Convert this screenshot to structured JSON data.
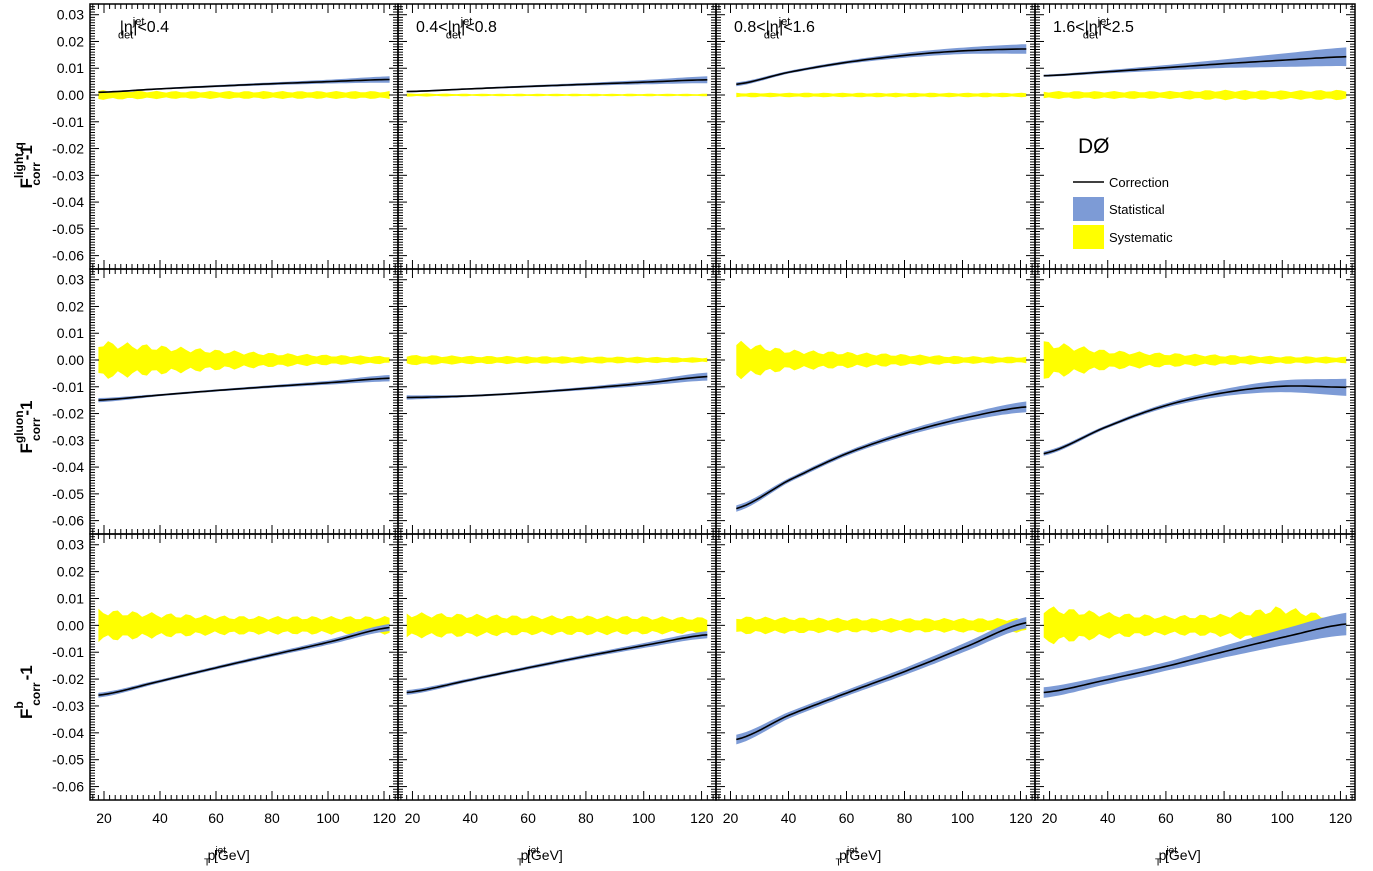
{
  "figure": {
    "experiment_label": "DØ",
    "x_axis_label": {
      "main": "p",
      "sup": "jet",
      "sub": "T",
      "units": "[GeV]"
    },
    "row_labels": [
      {
        "main": "F",
        "sup": "light q",
        "sub": "corr",
        "suffix": "-1"
      },
      {
        "main": "F",
        "sup": "gluon",
        "sub": "corr",
        "suffix": "-1"
      },
      {
        "main": "F",
        "sup": "b",
        "sub": "corr",
        "suffix": "-1"
      }
    ],
    "column_titles": [
      {
        "pre": "|η",
        "sup": "jet",
        "sub": "det",
        "post": "|<0.4"
      },
      {
        "pre": "0.4<|η",
        "sup": "jet",
        "sub": "det",
        "post": "|<0.8"
      },
      {
        "pre": "0.8<|η",
        "sup": "jet",
        "sub": "det",
        "post": "|<1.6"
      },
      {
        "pre": "1.6<|η",
        "sup": "jet",
        "sub": "det",
        "post": "|<2.5"
      }
    ],
    "legend": [
      {
        "label": "Correction",
        "kind": "line"
      },
      {
        "label": "Statistical",
        "kind": "band-stat"
      },
      {
        "label": "Systematic",
        "kind": "band-syst"
      }
    ],
    "colors": {
      "correction": "#000000",
      "statistical": "#7d9bd6",
      "systematic": "#ffff00"
    }
  },
  "chart_data": {
    "type": "line",
    "xlim": [
      15,
      125
    ],
    "ylim": [
      -0.065,
      0.034
    ],
    "x_ticks": [
      20,
      40,
      60,
      80,
      100,
      120
    ],
    "y_ticks": [
      -0.06,
      -0.05,
      -0.04,
      -0.03,
      -0.02,
      -0.01,
      0.0,
      0.01,
      0.02,
      0.03
    ],
    "y_tick_labels": [
      "-0.06",
      "-0.05",
      "-0.04",
      "-0.03",
      "-0.02",
      "-0.01",
      "0.00",
      "0.01",
      "0.02",
      "0.03"
    ],
    "x_tick_labels": [
      "20",
      "40",
      "60",
      "80",
      "100",
      "120"
    ],
    "grid": false,
    "panels": [
      {
        "row": 0,
        "col": 0,
        "x": [
          18,
          40,
          60,
          80,
          100,
          122
        ],
        "correction": [
          0.001,
          0.0023,
          0.0033,
          0.0042,
          0.005,
          0.0058
        ],
        "stat": [
          0.0003,
          0.0003,
          0.0004,
          0.0005,
          0.0007,
          0.0012
        ],
        "syst": [
          0.0015,
          0.0012,
          0.0012,
          0.0012,
          0.0012,
          0.0012
        ]
      },
      {
        "row": 0,
        "col": 1,
        "x": [
          18,
          40,
          60,
          80,
          100,
          122
        ],
        "correction": [
          0.0013,
          0.0023,
          0.0032,
          0.004,
          0.0048,
          0.0057
        ],
        "stat": [
          0.0003,
          0.0003,
          0.0004,
          0.0005,
          0.0008,
          0.0013
        ],
        "syst": [
          0.0005,
          0.0004,
          0.0004,
          0.0004,
          0.0004,
          0.0004
        ]
      },
      {
        "row": 0,
        "col": 2,
        "x": [
          22,
          40,
          60,
          80,
          100,
          122
        ],
        "correction": [
          0.004,
          0.0085,
          0.0122,
          0.0148,
          0.0165,
          0.0172
        ],
        "stat": [
          0.0007,
          0.0005,
          0.0006,
          0.0009,
          0.0012,
          0.0018
        ],
        "syst": [
          0.0007,
          0.0007,
          0.0007,
          0.0007,
          0.0007,
          0.0007
        ]
      },
      {
        "row": 0,
        "col": 3,
        "x": [
          18,
          40,
          60,
          80,
          100,
          122
        ],
        "correction": [
          0.0072,
          0.0087,
          0.0102,
          0.0117,
          0.013,
          0.0143
        ],
        "stat": [
          0.0004,
          0.0006,
          0.001,
          0.0016,
          0.0025,
          0.0035
        ],
        "syst": [
          0.0012,
          0.0012,
          0.0012,
          0.0016,
          0.0014,
          0.0016
        ]
      },
      {
        "row": 1,
        "col": 0,
        "x": [
          18,
          40,
          60,
          80,
          100,
          122
        ],
        "correction": [
          -0.015,
          -0.0131,
          -0.0114,
          -0.0099,
          -0.0085,
          -0.0068
        ],
        "stat": [
          0.0008,
          0.0004,
          0.0004,
          0.0005,
          0.0007,
          0.0012
        ],
        "syst": [
          0.006,
          0.0045,
          0.0032,
          0.0022,
          0.0016,
          0.0012
        ]
      },
      {
        "row": 1,
        "col": 1,
        "x": [
          18,
          40,
          60,
          80,
          100,
          122
        ],
        "correction": [
          -0.014,
          -0.0134,
          -0.0122,
          -0.0106,
          -0.0087,
          -0.0062
        ],
        "stat": [
          0.0008,
          0.0004,
          0.0004,
          0.0006,
          0.0009,
          0.0015
        ],
        "syst": [
          0.0016,
          0.0013,
          0.0012,
          0.0011,
          0.001,
          0.0008
        ]
      },
      {
        "row": 1,
        "col": 2,
        "x": [
          22,
          40,
          60,
          80,
          100,
          122
        ],
        "correction": [
          -0.0555,
          -0.045,
          -0.035,
          -0.0275,
          -0.0218,
          -0.0175
        ],
        "stat": [
          0.0012,
          0.0008,
          0.0008,
          0.001,
          0.0013,
          0.002
        ],
        "syst": [
          0.006,
          0.0032,
          0.0025,
          0.0018,
          0.0012,
          0.001
        ]
      },
      {
        "row": 1,
        "col": 3,
        "x": [
          18,
          40,
          60,
          80,
          100,
          122
        ],
        "correction": [
          -0.035,
          -0.0248,
          -0.017,
          -0.0122,
          -0.0098,
          -0.0102
        ],
        "stat": [
          0.0008,
          0.0006,
          0.0008,
          0.0013,
          0.0022,
          0.0032
        ],
        "syst": [
          0.006,
          0.003,
          0.0022,
          0.0016,
          0.0012,
          0.001
        ]
      },
      {
        "row": 2,
        "col": 0,
        "x": [
          18,
          40,
          60,
          80,
          100,
          122
        ],
        "correction": [
          -0.026,
          -0.0208,
          -0.0158,
          -0.011,
          -0.0063,
          -0.0008
        ],
        "stat": [
          0.0009,
          0.0006,
          0.0006,
          0.0007,
          0.0009,
          0.0013
        ],
        "syst": [
          0.005,
          0.0038,
          0.003,
          0.0028,
          0.0028,
          0.0028
        ]
      },
      {
        "row": 2,
        "col": 1,
        "x": [
          18,
          40,
          60,
          80,
          100,
          122
        ],
        "correction": [
          -0.025,
          -0.0203,
          -0.0158,
          -0.0115,
          -0.0075,
          -0.0035
        ],
        "stat": [
          0.0009,
          0.0006,
          0.0006,
          0.0007,
          0.0009,
          0.0013
        ],
        "syst": [
          0.004,
          0.0035,
          0.003,
          0.003,
          0.0028,
          0.0025
        ]
      },
      {
        "row": 2,
        "col": 2,
        "x": [
          22,
          40,
          60,
          80,
          100,
          122
        ],
        "correction": [
          -0.0425,
          -0.0335,
          -0.0252,
          -0.0172,
          -0.0085,
          0.001
        ],
        "stat": [
          0.0018,
          0.0012,
          0.0011,
          0.0013,
          0.0016,
          0.0021
        ],
        "syst": [
          0.0028,
          0.0025,
          0.0022,
          0.0022,
          0.0022,
          0.0022
        ]
      },
      {
        "row": 2,
        "col": 3,
        "x": [
          18,
          40,
          60,
          80,
          100,
          122
        ],
        "correction": [
          -0.025,
          -0.0202,
          -0.0153,
          -0.0098,
          -0.0045,
          0.0005
        ],
        "stat": [
          0.002,
          0.0016,
          0.0016,
          0.0022,
          0.003,
          0.0042
        ],
        "syst": [
          0.006,
          0.004,
          0.003,
          0.0035,
          0.006,
          0.002
        ]
      }
    ]
  }
}
